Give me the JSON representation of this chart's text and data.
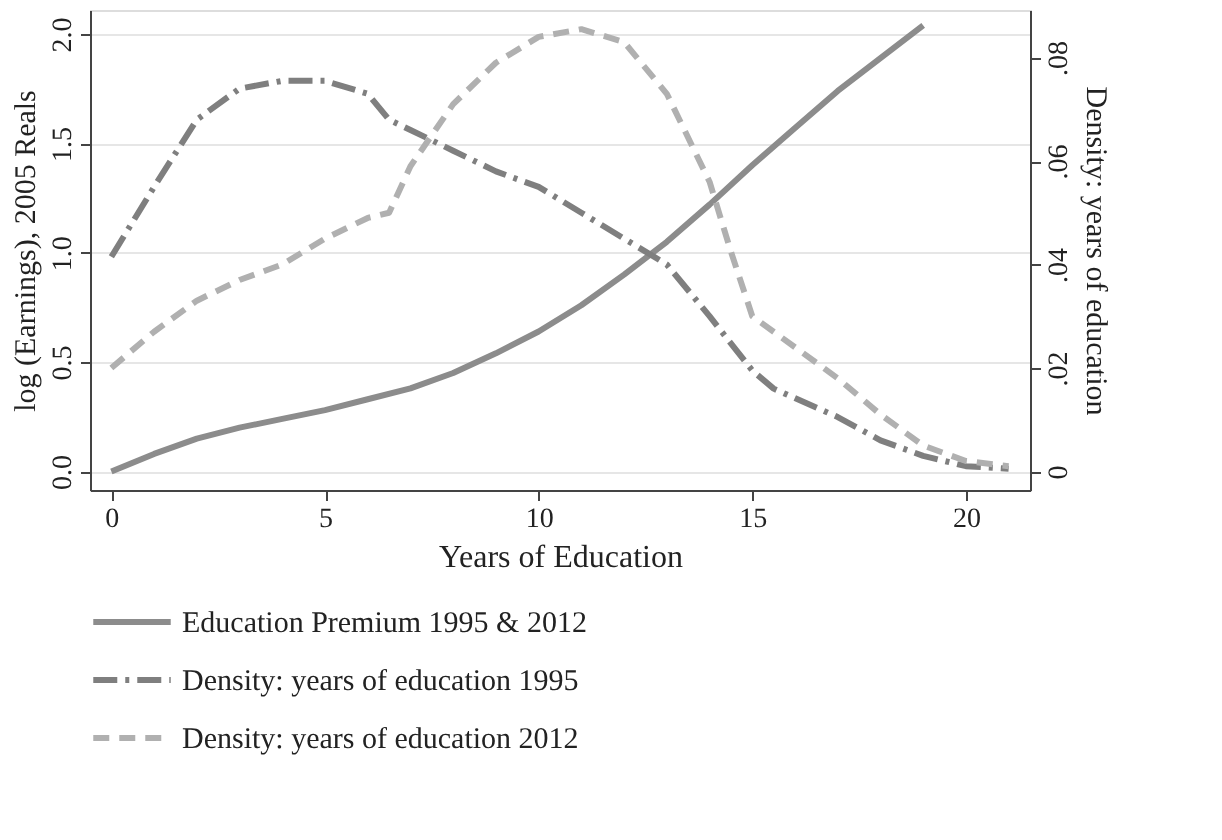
{
  "chart_data": {
    "type": "line",
    "xlabel": "Years of Education",
    "ylabel": "log (Earnings), 2005 Reals",
    "y2label": "Density: years of education",
    "xlim": [
      -0.5,
      21.5
    ],
    "xticks": [
      0,
      5,
      10,
      15,
      20
    ],
    "ylim": [
      -0.085,
      2.11
    ],
    "yticks": [
      {
        "value": 0,
        "label": "0.0"
      },
      {
        "value": 0.5,
        "label": "0.5"
      },
      {
        "value": 1,
        "label": "1.0"
      },
      {
        "value": 1.5,
        "label": "1.5"
      },
      {
        "value": 2,
        "label": "2.0"
      }
    ],
    "y2lim": [
      -0.0036,
      0.0892
    ],
    "y2ticks": [
      0,
      {
        "value": 0.02,
        "label": ".02"
      },
      {
        "value": 0.04,
        "label": ".04"
      },
      {
        "value": 0.06,
        "label": ".06"
      },
      {
        "value": 0.08,
        "label": ".08"
      }
    ],
    "grid": "y",
    "legend": "bottom",
    "marker": "none",
    "series": [
      {
        "name": "Education Premium 1995 & 2012",
        "color": "#8c8c8c",
        "line_style": "solid",
        "x": [
          0,
          1,
          2,
          3,
          4,
          5,
          6,
          7,
          8,
          9,
          10,
          11,
          12,
          13,
          14,
          15,
          16,
          17,
          18,
          19
        ],
        "values": [
          0,
          0.08,
          0.15,
          0.2,
          0.24,
          0.28,
          0.33,
          0.38,
          0.45,
          0.54,
          0.64,
          0.76,
          0.9,
          1.05,
          1.22,
          1.4,
          1.57,
          1.74,
          1.89,
          2.04
        ]
      },
      {
        "name": "Density: years of education 1995",
        "color": "#7f7f7f",
        "line_style": "dashdot",
        "axis": "y2",
        "x": [
          0,
          1,
          2,
          3,
          4,
          5,
          6,
          6.5,
          7,
          8,
          9,
          10,
          11,
          12,
          13,
          14,
          15,
          15.5,
          17,
          18,
          19,
          20,
          21
        ],
        "values": [
          0.0415,
          0.055,
          0.068,
          0.074,
          0.0755,
          0.0755,
          0.073,
          0.068,
          0.066,
          0.062,
          0.058,
          0.055,
          0.05,
          0.045,
          0.04,
          0.03,
          0.0195,
          0.016,
          0.0105,
          0.006,
          0.003,
          0.001,
          0.0005
        ]
      },
      {
        "name": "Density: years of education 2012",
        "color": "#b0b0b0",
        "line_style": "dashed",
        "axis": "y2",
        "x": [
          0,
          1,
          2,
          3,
          4,
          5,
          6,
          6.5,
          7,
          8,
          9,
          10,
          11,
          12,
          13,
          14,
          14.5,
          15,
          16,
          17,
          18,
          19,
          20,
          21
        ],
        "values": [
          0.02,
          0.027,
          0.033,
          0.037,
          0.04,
          0.045,
          0.049,
          0.05,
          0.059,
          0.071,
          0.079,
          0.084,
          0.0855,
          0.083,
          0.073,
          0.056,
          0.0425,
          0.03,
          0.024,
          0.018,
          0.011,
          0.005,
          0.002,
          0.001
        ]
      }
    ]
  }
}
